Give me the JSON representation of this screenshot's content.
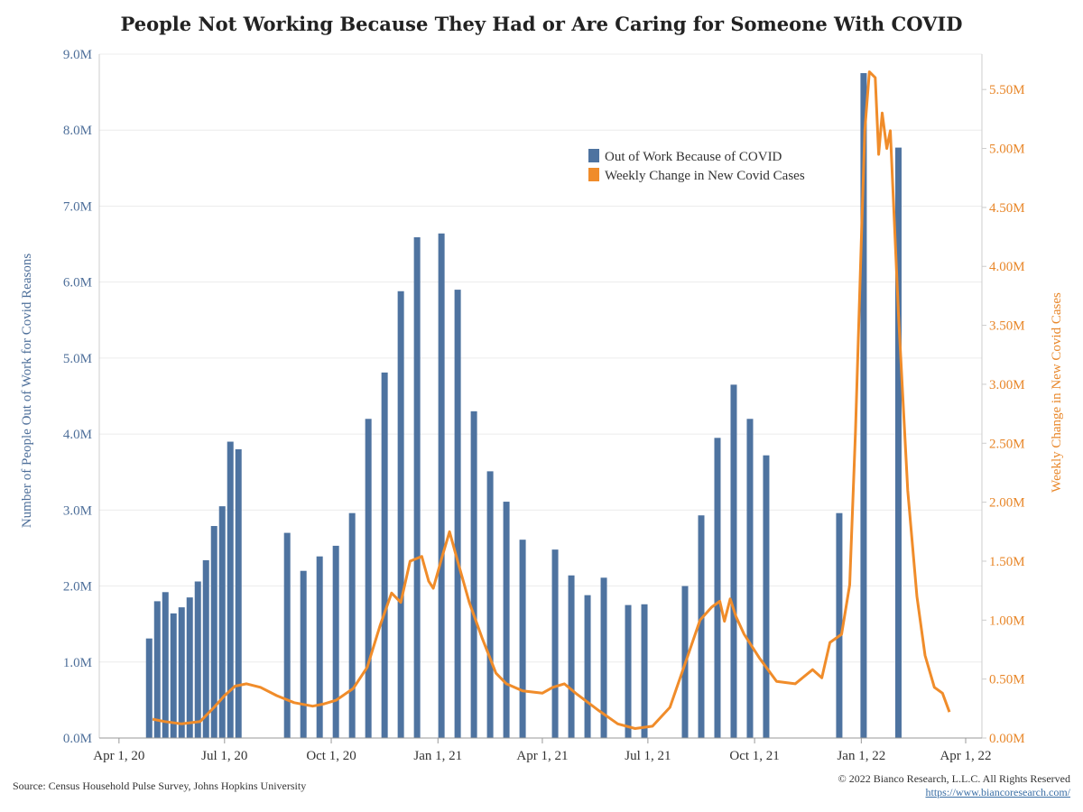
{
  "title": "People Not Working Because They Had or Are Caring for Someone With COVID",
  "footer": {
    "source": "Source: Census Household Pulse Survey, Johns Hopkins University",
    "copyright": "© 2022 Bianco Research, L.L.C. All Rights Reserved",
    "url": "https://www.biancoresearch.com/"
  },
  "colors": {
    "bars": "#4e73a0",
    "line": "#f08c2a",
    "left_axis": "#4e6f9a",
    "right_axis": "#e8872a"
  },
  "chart_data": {
    "type": "bar",
    "ylabel": "Number of People Out of Work for Covid Reasons",
    "y2label": "Weekly Change in New Covid Cases",
    "ylim": [
      0,
      9000000
    ],
    "y2lim": [
      0,
      5800000
    ],
    "xlim": [
      "2020-03-15",
      "2022-04-15"
    ],
    "x_ticks": [
      {
        "label": "Apr 1, 20",
        "date": "2020-04-01"
      },
      {
        "label": "Jul 1, 20",
        "date": "2020-07-01"
      },
      {
        "label": "Oct 1, 20",
        "date": "2020-10-01"
      },
      {
        "label": "Jan 1, 21",
        "date": "2021-01-01"
      },
      {
        "label": "Apr 1, 21",
        "date": "2021-04-01"
      },
      {
        "label": "Jul 1, 21",
        "date": "2021-07-01"
      },
      {
        "label": "Oct 1, 21",
        "date": "2021-10-01"
      },
      {
        "label": "Jan 1, 22",
        "date": "2022-01-01"
      },
      {
        "label": "Apr 1, 22",
        "date": "2022-04-01"
      }
    ],
    "y_ticks": [
      "0.0M",
      "1.0M",
      "2.0M",
      "3.0M",
      "4.0M",
      "5.0M",
      "6.0M",
      "7.0M",
      "8.0M",
      "9.0M"
    ],
    "y2_ticks": [
      "0.00M",
      "0.50M",
      "1.00M",
      "1.50M",
      "2.00M",
      "2.50M",
      "3.00M",
      "3.50M",
      "4.00M",
      "4.50M",
      "5.00M",
      "5.50M"
    ],
    "legend": {
      "position": "top-right",
      "items": [
        "Out of Work Because of COVID",
        "Weekly Change in New Covid Cases"
      ]
    },
    "series": [
      {
        "name": "Out of Work Because of COVID",
        "type": "bar",
        "axis": "left",
        "points": [
          {
            "x": "2020-04-27",
            "y": 1310000
          },
          {
            "x": "2020-05-04",
            "y": 1800000
          },
          {
            "x": "2020-05-11",
            "y": 1920000
          },
          {
            "x": "2020-05-18",
            "y": 1640000
          },
          {
            "x": "2020-05-25",
            "y": 1720000
          },
          {
            "x": "2020-06-01",
            "y": 1850000
          },
          {
            "x": "2020-06-08",
            "y": 2060000
          },
          {
            "x": "2020-06-15",
            "y": 2340000
          },
          {
            "x": "2020-06-22",
            "y": 2790000
          },
          {
            "x": "2020-06-29",
            "y": 3050000
          },
          {
            "x": "2020-07-06",
            "y": 3900000
          },
          {
            "x": "2020-07-13",
            "y": 3800000
          },
          {
            "x": "2020-08-24",
            "y": 2700000
          },
          {
            "x": "2020-09-07",
            "y": 2200000
          },
          {
            "x": "2020-09-21",
            "y": 2390000
          },
          {
            "x": "2020-10-05",
            "y": 2530000
          },
          {
            "x": "2020-10-19",
            "y": 2960000
          },
          {
            "x": "2020-11-02",
            "y": 4200000
          },
          {
            "x": "2020-11-16",
            "y": 4810000
          },
          {
            "x": "2020-11-30",
            "y": 5880000
          },
          {
            "x": "2020-12-14",
            "y": 6590000
          },
          {
            "x": "2021-01-04",
            "y": 6640000
          },
          {
            "x": "2021-01-18",
            "y": 5900000
          },
          {
            "x": "2021-02-01",
            "y": 4300000
          },
          {
            "x": "2021-02-15",
            "y": 3510000
          },
          {
            "x": "2021-03-01",
            "y": 3110000
          },
          {
            "x": "2021-03-15",
            "y": 2610000
          },
          {
            "x": "2021-04-12",
            "y": 2480000
          },
          {
            "x": "2021-04-26",
            "y": 2140000
          },
          {
            "x": "2021-05-10",
            "y": 1880000
          },
          {
            "x": "2021-05-24",
            "y": 2110000
          },
          {
            "x": "2021-06-14",
            "y": 1750000
          },
          {
            "x": "2021-06-28",
            "y": 1760000
          },
          {
            "x": "2021-08-02",
            "y": 2000000
          },
          {
            "x": "2021-08-16",
            "y": 2930000
          },
          {
            "x": "2021-08-30",
            "y": 3950000
          },
          {
            "x": "2021-09-13",
            "y": 4650000
          },
          {
            "x": "2021-09-27",
            "y": 4200000
          },
          {
            "x": "2021-10-11",
            "y": 3720000
          },
          {
            "x": "2021-12-13",
            "y": 2960000
          },
          {
            "x": "2022-01-03",
            "y": 8750000
          },
          {
            "x": "2022-02-02",
            "y": 7770000
          }
        ]
      },
      {
        "name": "Weekly Change in New Covid Cases",
        "type": "line",
        "axis": "right",
        "points": [
          {
            "x": "2020-04-30",
            "y": 160000
          },
          {
            "x": "2020-05-10",
            "y": 140000
          },
          {
            "x": "2020-05-25",
            "y": 120000
          },
          {
            "x": "2020-06-10",
            "y": 140000
          },
          {
            "x": "2020-06-22",
            "y": 260000
          },
          {
            "x": "2020-07-01",
            "y": 360000
          },
          {
            "x": "2020-07-10",
            "y": 440000
          },
          {
            "x": "2020-07-20",
            "y": 460000
          },
          {
            "x": "2020-08-01",
            "y": 430000
          },
          {
            "x": "2020-08-15",
            "y": 360000
          },
          {
            "x": "2020-08-30",
            "y": 300000
          },
          {
            "x": "2020-09-15",
            "y": 270000
          },
          {
            "x": "2020-09-25",
            "y": 290000
          },
          {
            "x": "2020-10-05",
            "y": 320000
          },
          {
            "x": "2020-10-20",
            "y": 420000
          },
          {
            "x": "2020-11-01",
            "y": 600000
          },
          {
            "x": "2020-11-12",
            "y": 950000
          },
          {
            "x": "2020-11-22",
            "y": 1230000
          },
          {
            "x": "2020-11-30",
            "y": 1150000
          },
          {
            "x": "2020-12-08",
            "y": 1500000
          },
          {
            "x": "2020-12-18",
            "y": 1540000
          },
          {
            "x": "2020-12-24",
            "y": 1330000
          },
          {
            "x": "2020-12-28",
            "y": 1270000
          },
          {
            "x": "2021-01-05",
            "y": 1550000
          },
          {
            "x": "2021-01-11",
            "y": 1750000
          },
          {
            "x": "2021-01-18",
            "y": 1500000
          },
          {
            "x": "2021-01-28",
            "y": 1150000
          },
          {
            "x": "2021-02-08",
            "y": 850000
          },
          {
            "x": "2021-02-20",
            "y": 550000
          },
          {
            "x": "2021-03-01",
            "y": 460000
          },
          {
            "x": "2021-03-15",
            "y": 400000
          },
          {
            "x": "2021-04-01",
            "y": 380000
          },
          {
            "x": "2021-04-10",
            "y": 430000
          },
          {
            "x": "2021-04-20",
            "y": 460000
          },
          {
            "x": "2021-05-01",
            "y": 370000
          },
          {
            "x": "2021-05-20",
            "y": 230000
          },
          {
            "x": "2021-06-05",
            "y": 120000
          },
          {
            "x": "2021-06-20",
            "y": 80000
          },
          {
            "x": "2021-07-05",
            "y": 100000
          },
          {
            "x": "2021-07-20",
            "y": 260000
          },
          {
            "x": "2021-08-01",
            "y": 600000
          },
          {
            "x": "2021-08-15",
            "y": 1000000
          },
          {
            "x": "2021-08-25",
            "y": 1110000
          },
          {
            "x": "2021-09-01",
            "y": 1160000
          },
          {
            "x": "2021-09-05",
            "y": 990000
          },
          {
            "x": "2021-09-10",
            "y": 1180000
          },
          {
            "x": "2021-09-15",
            "y": 1030000
          },
          {
            "x": "2021-09-22",
            "y": 880000
          },
          {
            "x": "2021-10-05",
            "y": 680000
          },
          {
            "x": "2021-10-20",
            "y": 480000
          },
          {
            "x": "2021-11-05",
            "y": 460000
          },
          {
            "x": "2021-11-20",
            "y": 580000
          },
          {
            "x": "2021-11-28",
            "y": 510000
          },
          {
            "x": "2021-12-05",
            "y": 810000
          },
          {
            "x": "2021-12-15",
            "y": 880000
          },
          {
            "x": "2021-12-22",
            "y": 1300000
          },
          {
            "x": "2021-12-27",
            "y": 2600000
          },
          {
            "x": "2022-01-01",
            "y": 4200000
          },
          {
            "x": "2022-01-04",
            "y": 5150000
          },
          {
            "x": "2022-01-08",
            "y": 5650000
          },
          {
            "x": "2022-01-13",
            "y": 5600000
          },
          {
            "x": "2022-01-16",
            "y": 4950000
          },
          {
            "x": "2022-01-19",
            "y": 5300000
          },
          {
            "x": "2022-01-23",
            "y": 5000000
          },
          {
            "x": "2022-01-26",
            "y": 5150000
          },
          {
            "x": "2022-02-02",
            "y": 3600000
          },
          {
            "x": "2022-02-10",
            "y": 2100000
          },
          {
            "x": "2022-02-18",
            "y": 1200000
          },
          {
            "x": "2022-02-25",
            "y": 700000
          },
          {
            "x": "2022-03-05",
            "y": 430000
          },
          {
            "x": "2022-03-12",
            "y": 380000
          },
          {
            "x": "2022-03-18",
            "y": 220000
          }
        ]
      }
    ]
  }
}
